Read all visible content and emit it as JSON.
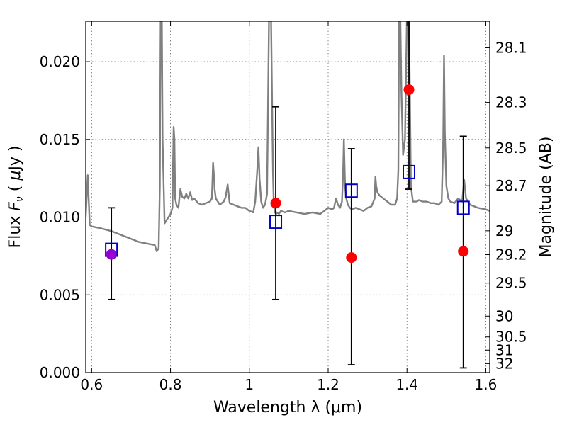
{
  "chart_data": {
    "type": "scatter",
    "xlabel": "Wavelength  λ (μm)",
    "ylabel": "Flux  F_ν  ( μJy )",
    "y2label": "Magnitude (AB)",
    "xlim": [
      0.585,
      1.61
    ],
    "ylim": [
      0.0,
      0.0226
    ],
    "grid": true,
    "x_ticks": [
      {
        "value": 0.6,
        "label": "0.6"
      },
      {
        "value": 0.8,
        "label": "0.8"
      },
      {
        "value": 1.0,
        "label": "1"
      },
      {
        "value": 1.2,
        "label": "1.2"
      },
      {
        "value": 1.4,
        "label": "1.4"
      },
      {
        "value": 1.6,
        "label": "1.6"
      }
    ],
    "y_ticks": [
      {
        "value": 0.0,
        "label": "0.000"
      },
      {
        "value": 0.005,
        "label": "0.005"
      },
      {
        "value": 0.01,
        "label": "0.010"
      },
      {
        "value": 0.015,
        "label": "0.015"
      },
      {
        "value": 0.02,
        "label": "0.020"
      }
    ],
    "mag_ticks": [
      "28.1",
      "28.3",
      "28.5",
      "28.7",
      "29",
      "29.2",
      "29.5",
      "30",
      "30.5",
      "31",
      "32"
    ],
    "colors": {
      "spectrum": "#808080",
      "observed": "#ff0000",
      "overlap": "#9400d3",
      "model": "#0000cc",
      "errorbar": "#000000"
    },
    "series": [
      {
        "type": "line",
        "x": [
          0.585,
          0.59,
          0.595,
          0.6,
          0.62,
          0.65,
          0.68,
          0.7,
          0.72,
          0.74,
          0.76,
          0.765,
          0.77,
          0.773,
          0.775,
          0.778,
          0.78,
          0.785,
          0.79,
          0.795,
          0.8,
          0.805,
          0.808,
          0.81,
          0.812,
          0.815,
          0.82,
          0.825,
          0.83,
          0.835,
          0.84,
          0.845,
          0.85,
          0.855,
          0.86,
          0.87,
          0.88,
          0.89,
          0.9,
          0.905,
          0.908,
          0.91,
          0.912,
          0.915,
          0.92,
          0.925,
          0.93,
          0.935,
          0.94,
          0.945,
          0.95,
          0.96,
          0.97,
          0.98,
          0.99,
          1.0,
          1.01,
          1.015,
          1.02,
          1.023,
          1.026,
          1.03,
          1.035,
          1.04,
          1.045,
          1.05,
          1.055,
          1.06,
          1.062,
          1.065,
          1.068,
          1.07,
          1.075,
          1.08,
          1.09,
          1.1,
          1.12,
          1.14,
          1.16,
          1.18,
          1.19,
          1.2,
          1.21,
          1.215,
          1.22,
          1.225,
          1.23,
          1.235,
          1.238,
          1.24,
          1.243,
          1.246,
          1.25,
          1.255,
          1.26,
          1.27,
          1.28,
          1.29,
          1.3,
          1.31,
          1.318,
          1.32,
          1.322,
          1.325,
          1.33,
          1.34,
          1.35,
          1.36,
          1.37,
          1.375,
          1.378,
          1.38,
          1.383,
          1.386,
          1.39,
          1.395,
          1.4,
          1.402,
          1.405,
          1.41,
          1.415,
          1.42,
          1.425,
          1.43,
          1.44,
          1.45,
          1.46,
          1.47,
          1.48,
          1.488,
          1.492,
          1.494,
          1.496,
          1.5,
          1.505,
          1.51,
          1.52,
          1.53,
          1.54,
          1.545,
          1.55,
          1.56,
          1.58,
          1.6,
          1.61
        ],
        "y": [
          0.01,
          0.0127,
          0.0095,
          0.0094,
          0.0093,
          0.0091,
          0.0088,
          0.0086,
          0.0084,
          0.0083,
          0.0082,
          0.0078,
          0.008,
          0.012,
          0.023,
          0.023,
          0.015,
          0.0096,
          0.0098,
          0.01,
          0.0102,
          0.0106,
          0.0158,
          0.015,
          0.0112,
          0.0108,
          0.0106,
          0.0118,
          0.0113,
          0.0112,
          0.0115,
          0.0112,
          0.0116,
          0.0111,
          0.0112,
          0.0109,
          0.0108,
          0.0109,
          0.011,
          0.0112,
          0.0135,
          0.0128,
          0.0118,
          0.0112,
          0.011,
          0.0108,
          0.0109,
          0.011,
          0.0113,
          0.0121,
          0.0109,
          0.0108,
          0.0107,
          0.0106,
          0.0106,
          0.0104,
          0.0103,
          0.011,
          0.013,
          0.0145,
          0.0125,
          0.011,
          0.0106,
          0.0108,
          0.0115,
          0.023,
          0.023,
          0.013,
          0.0108,
          0.0103,
          0.0102,
          0.0103,
          0.0102,
          0.0104,
          0.0103,
          0.0104,
          0.0103,
          0.0102,
          0.0103,
          0.0102,
          0.0104,
          0.0106,
          0.0105,
          0.0106,
          0.0112,
          0.0108,
          0.0106,
          0.011,
          0.0128,
          0.015,
          0.012,
          0.0112,
          0.0108,
          0.0106,
          0.0105,
          0.0106,
          0.0105,
          0.0104,
          0.0106,
          0.0107,
          0.0112,
          0.0126,
          0.012,
          0.0116,
          0.0114,
          0.0112,
          0.011,
          0.0108,
          0.0108,
          0.0112,
          0.013,
          0.023,
          0.023,
          0.018,
          0.014,
          0.015,
          0.023,
          0.023,
          0.023,
          0.012,
          0.011,
          0.011,
          0.011,
          0.0111,
          0.011,
          0.011,
          0.0109,
          0.0109,
          0.0108,
          0.011,
          0.015,
          0.0204,
          0.0155,
          0.012,
          0.0112,
          0.011,
          0.0109,
          0.0112,
          0.011,
          0.0124,
          0.0112,
          0.0108,
          0.0106,
          0.0105,
          0.0104
        ]
      },
      {
        "type": "errorbar",
        "points": [
          {
            "x": 0.65,
            "y": 0.0076,
            "yerr_low": 0.0047,
            "yerr_high": 0.0106
          },
          {
            "x": 1.067,
            "y": 0.0109,
            "yerr_low": 0.0047,
            "yerr_high": 0.0171
          },
          {
            "x": 1.259,
            "y": 0.0074,
            "yerr_low": 0.0005,
            "yerr_high": 0.0144
          },
          {
            "x": 1.405,
            "y": 0.0182,
            "yerr_low": 0.0118,
            "yerr_high": 0.023
          },
          {
            "x": 1.543,
            "y": 0.0078,
            "yerr_low": 0.0003,
            "yerr_high": 0.0152
          }
        ]
      },
      {
        "type": "scatter",
        "marker": "square",
        "x": [
          0.65,
          1.067,
          1.259,
          1.405,
          1.543
        ],
        "y": [
          0.0079,
          0.0097,
          0.0117,
          0.0129,
          0.0106
        ]
      }
    ]
  }
}
